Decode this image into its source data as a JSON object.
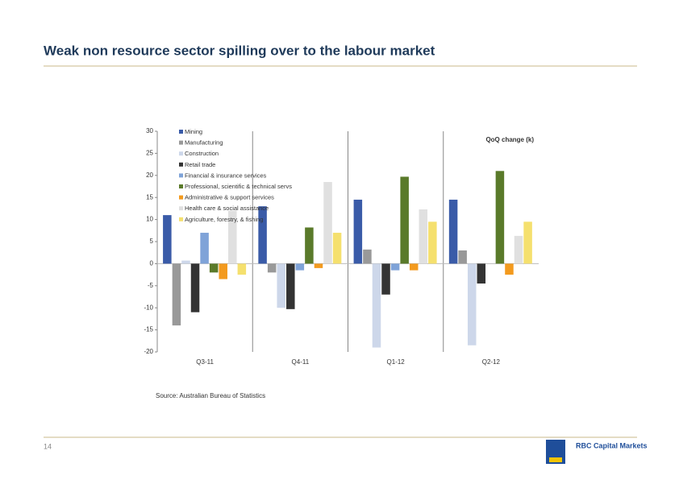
{
  "slide": {
    "title": "Weak non resource sector spilling over to the labour market",
    "source": "Source: Australian Bureau of Statistics",
    "page_number": "14",
    "logo": "RBC Capital Markets"
  },
  "chart_data": {
    "type": "bar",
    "annotation": "QoQ change (k)",
    "categories": [
      "Q3-11",
      "Q4-11",
      "Q1-12",
      "Q2-12"
    ],
    "series": [
      {
        "name": "Mining",
        "color": "#3a5ba8",
        "values": [
          11,
          13,
          14.5,
          14.5
        ]
      },
      {
        "name": "Manufacturing",
        "color": "#999999",
        "values": [
          -14,
          -2,
          3.2,
          3
        ]
      },
      {
        "name": "Construction",
        "color": "#cdd7ea",
        "values": [
          0.7,
          -10,
          -19,
          -18.5
        ]
      },
      {
        "name": "Retail trade",
        "color": "#333333",
        "values": [
          -11,
          -10.3,
          -7,
          -4.5
        ]
      },
      {
        "name": "Financial & insurance services",
        "color": "#7fa3d8",
        "values": [
          7,
          -1.5,
          -1.5,
          0
        ]
      },
      {
        "name": "Professional, scientific & technical servs",
        "color": "#5a7a2a",
        "values": [
          -2,
          8.2,
          19.7,
          21
        ]
      },
      {
        "name": "Administrative & support services",
        "color": "#f39a1e",
        "values": [
          -3.5,
          -1,
          -1.5,
          -2.5
        ]
      },
      {
        "name": "Health care & social assistance",
        "color": "#e0e0e0",
        "values": [
          12,
          18.5,
          12.3,
          6.3
        ]
      },
      {
        "name": "Agriculture, forestry, & fishing",
        "color": "#f5e06e",
        "values": [
          -2.5,
          7,
          9.5,
          9.5
        ]
      }
    ],
    "ylim": [
      -20,
      30
    ],
    "yticks": [
      -20,
      -15,
      -10,
      -5,
      0,
      5,
      10,
      15,
      20,
      25,
      30
    ]
  }
}
